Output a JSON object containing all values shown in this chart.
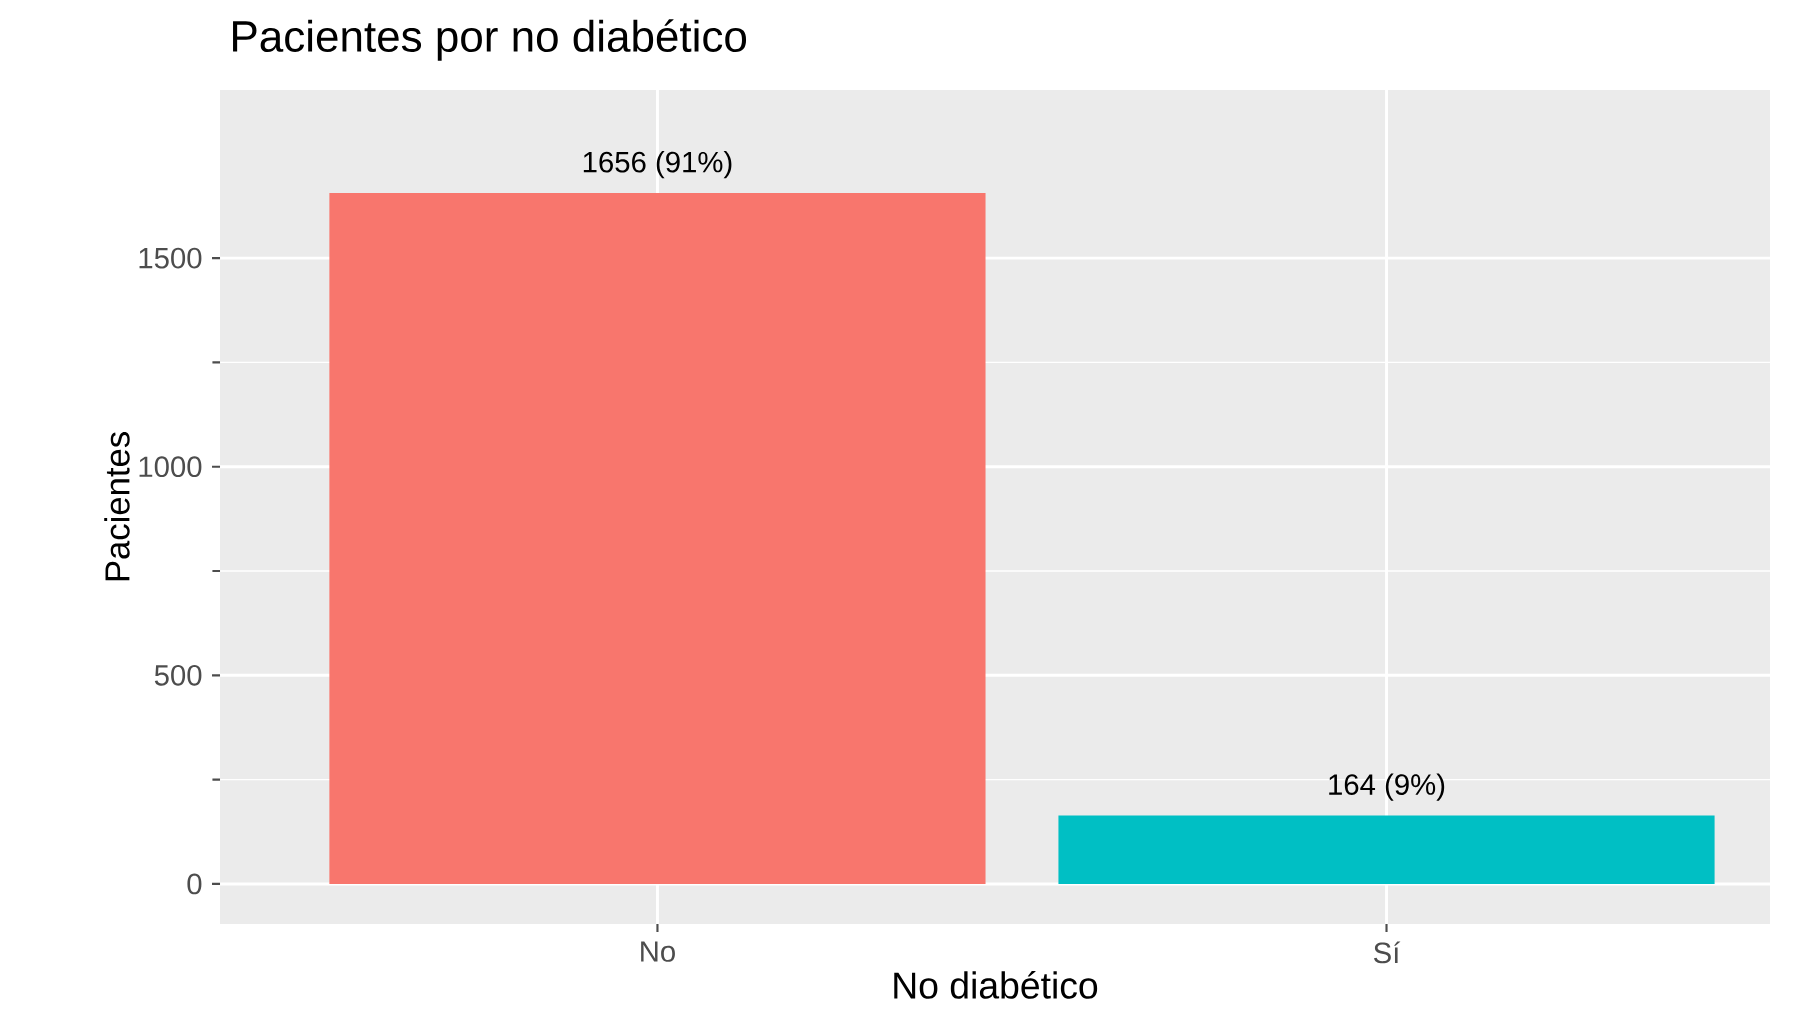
{
  "chart_data": {
    "type": "bar",
    "title": "Pacientes por no diabético",
    "xlabel": "No diabético",
    "ylabel": "Pacientes",
    "categories": [
      "No",
      "Sí"
    ],
    "values": [
      1656,
      164
    ],
    "colors": [
      "#f8766d",
      "#00bfc4"
    ],
    "value_labels": [
      "1656 (91%)",
      "164 (9%)"
    ],
    "ylim": [
      -96,
      1903
    ],
    "yticks": [
      0,
      500,
      1000,
      1500
    ],
    "grid": true
  }
}
